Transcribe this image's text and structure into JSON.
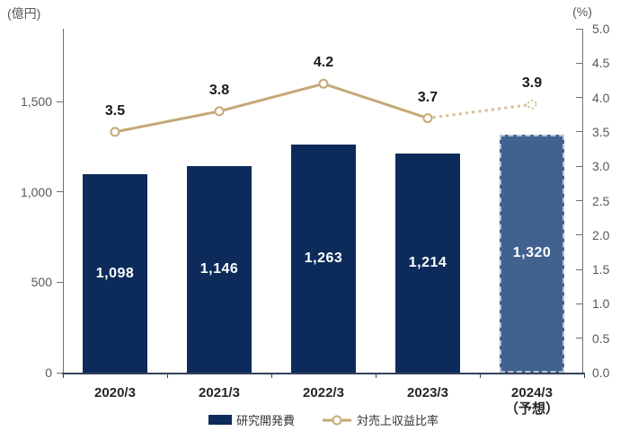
{
  "chart_data": {
    "type": "bar",
    "subtype": "bar-line-combo",
    "title": "",
    "categories": [
      "2020/3",
      "2021/3",
      "2022/3",
      "2023/3",
      "2024/3"
    ],
    "category_sublabels": [
      "",
      "",
      "",
      "",
      "（予想）"
    ],
    "series": [
      {
        "name": "研究開発費",
        "type": "bar",
        "axis": "left",
        "values": [
          1098,
          1146,
          1263,
          1214,
          1320
        ],
        "value_labels": [
          "1,098",
          "1,146",
          "1,263",
          "1,214",
          "1,320"
        ],
        "color": "#0d2b5a",
        "forecast": {
          "index": 4,
          "color": "#41618e",
          "border_color": "#b7c3d6"
        }
      },
      {
        "name": "対売上収益比率",
        "type": "line",
        "axis": "right",
        "values": [
          3.5,
          3.8,
          4.2,
          3.7,
          3.9
        ],
        "value_labels": [
          "3.5",
          "3.8",
          "4.2",
          "3.7",
          "3.9"
        ],
        "color": "#c6a876",
        "marker": "open-circle",
        "forecast": {
          "index": 4,
          "dotted_segment": true,
          "marker_color": "#d8c59c"
        }
      }
    ],
    "left_axis": {
      "unit": "(億円)",
      "tick_values": [
        0,
        500,
        1000,
        1500
      ],
      "tick_labels": [
        "0",
        "500",
        "1,000",
        "1,500"
      ],
      "max": 1905
    },
    "right_axis": {
      "unit": "(%)",
      "tick_values": [
        0,
        0.5,
        1,
        1.5,
        2,
        2.5,
        3,
        3.5,
        4,
        4.5,
        5
      ],
      "tick_labels": [
        "0.0",
        "0.5",
        "1.0",
        "1.5",
        "2.0",
        "2.5",
        "3.0",
        "3.5",
        "4.0",
        "4.5",
        "5.0"
      ],
      "max": 5
    },
    "grid": false,
    "legend_position": "bottom"
  }
}
